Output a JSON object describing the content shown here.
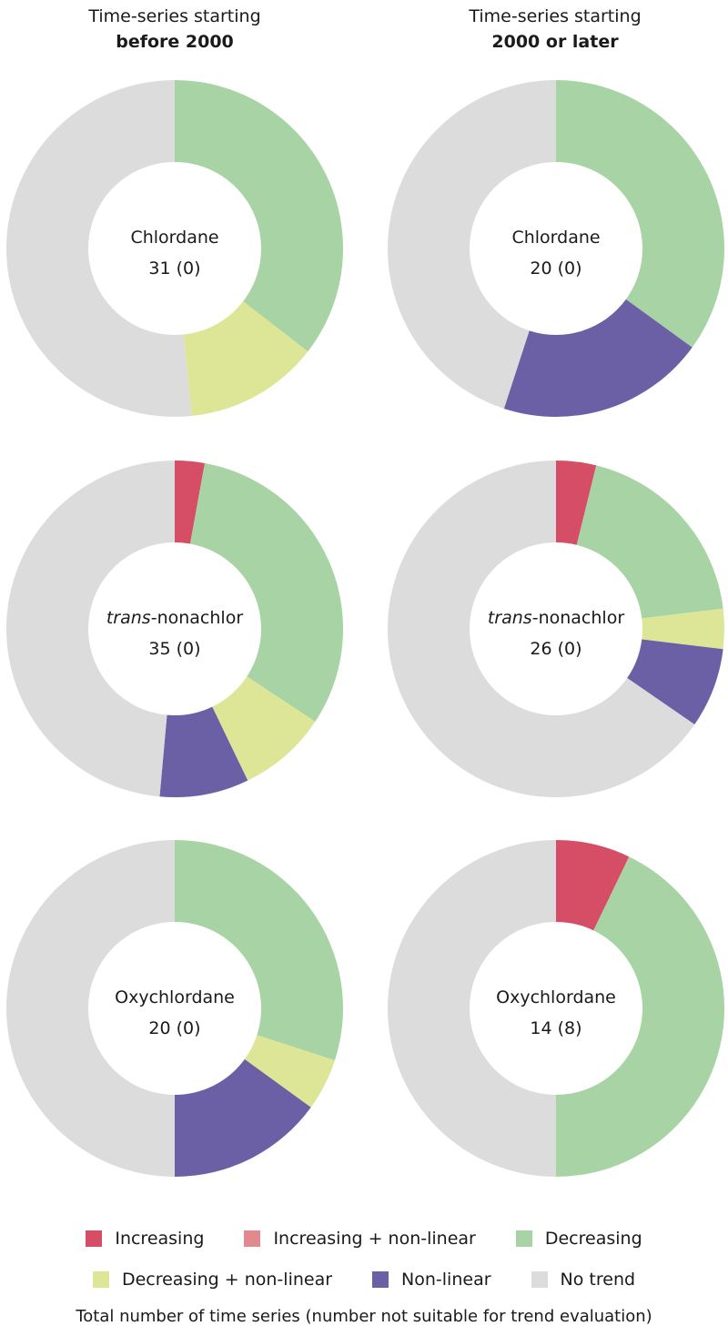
{
  "headers": {
    "left": {
      "line1": "Time-series starting",
      "line2": "before 2000"
    },
    "right": {
      "line1": "Time-series starting",
      "line2": "2000 or later"
    }
  },
  "colors": {
    "increasing": "#d64d66",
    "increasing_nonlinear": "#e08a90",
    "decreasing": "#a8d3a4",
    "decreasing_nonlinear": "#dde697",
    "nonlinear": "#6b5fa5",
    "no_trend": "#dcdcdc"
  },
  "legend": [
    {
      "key": "increasing",
      "label": "Increasing"
    },
    {
      "key": "increasing_nonlinear",
      "label": "Increasing + non-linear"
    },
    {
      "key": "decreasing",
      "label": "Decreasing"
    },
    {
      "key": "decreasing_nonlinear",
      "label": "Decreasing + non-linear"
    },
    {
      "key": "nonlinear",
      "label": "Non-linear"
    },
    {
      "key": "no_trend",
      "label": "No trend"
    }
  ],
  "footnote": "Total number of time series (number not suitable for trend evaluation)",
  "chart_data": [
    {
      "type": "pie",
      "period": "before 2000",
      "compound_prefix": "",
      "compound": "Chlordane",
      "count_label": "31 (0)",
      "slices": [
        {
          "key": "increasing",
          "value": 0
        },
        {
          "key": "decreasing",
          "value": 11
        },
        {
          "key": "decreasing_nonlinear",
          "value": 4
        },
        {
          "key": "nonlinear",
          "value": 0
        },
        {
          "key": "no_trend",
          "value": 16
        }
      ]
    },
    {
      "type": "pie",
      "period": "2000 or later",
      "compound_prefix": "",
      "compound": "Chlordane",
      "count_label": "20 (0)",
      "slices": [
        {
          "key": "increasing",
          "value": 0
        },
        {
          "key": "decreasing",
          "value": 7
        },
        {
          "key": "decreasing_nonlinear",
          "value": 0
        },
        {
          "key": "nonlinear",
          "value": 4
        },
        {
          "key": "no_trend",
          "value": 9
        }
      ]
    },
    {
      "type": "pie",
      "period": "before 2000",
      "compound_prefix": "trans",
      "compound": "-nonachlor",
      "count_label": "35 (0)",
      "slices": [
        {
          "key": "increasing",
          "value": 1
        },
        {
          "key": "decreasing",
          "value": 11
        },
        {
          "key": "decreasing_nonlinear",
          "value": 3
        },
        {
          "key": "nonlinear",
          "value": 3
        },
        {
          "key": "no_trend",
          "value": 17
        }
      ]
    },
    {
      "type": "pie",
      "period": "2000 or later",
      "compound_prefix": "trans",
      "compound": "-nonachlor",
      "count_label": "26 (0)",
      "slices": [
        {
          "key": "increasing",
          "value": 1
        },
        {
          "key": "decreasing",
          "value": 5
        },
        {
          "key": "decreasing_nonlinear",
          "value": 1
        },
        {
          "key": "nonlinear",
          "value": 2
        },
        {
          "key": "no_trend",
          "value": 17
        }
      ]
    },
    {
      "type": "pie",
      "period": "before 2000",
      "compound_prefix": "",
      "compound": "Oxychlordane",
      "count_label": "20 (0)",
      "slices": [
        {
          "key": "increasing",
          "value": 0
        },
        {
          "key": "decreasing",
          "value": 6
        },
        {
          "key": "decreasing_nonlinear",
          "value": 1
        },
        {
          "key": "nonlinear",
          "value": 3
        },
        {
          "key": "no_trend",
          "value": 10
        }
      ]
    },
    {
      "type": "pie",
      "period": "2000 or later",
      "compound_prefix": "",
      "compound": "Oxychlordane",
      "count_label": "14 (8)",
      "slices": [
        {
          "key": "increasing",
          "value": 1
        },
        {
          "key": "decreasing",
          "value": 6
        },
        {
          "key": "decreasing_nonlinear",
          "value": 0
        },
        {
          "key": "nonlinear",
          "value": 0
        },
        {
          "key": "no_trend",
          "value": 7
        }
      ]
    }
  ]
}
